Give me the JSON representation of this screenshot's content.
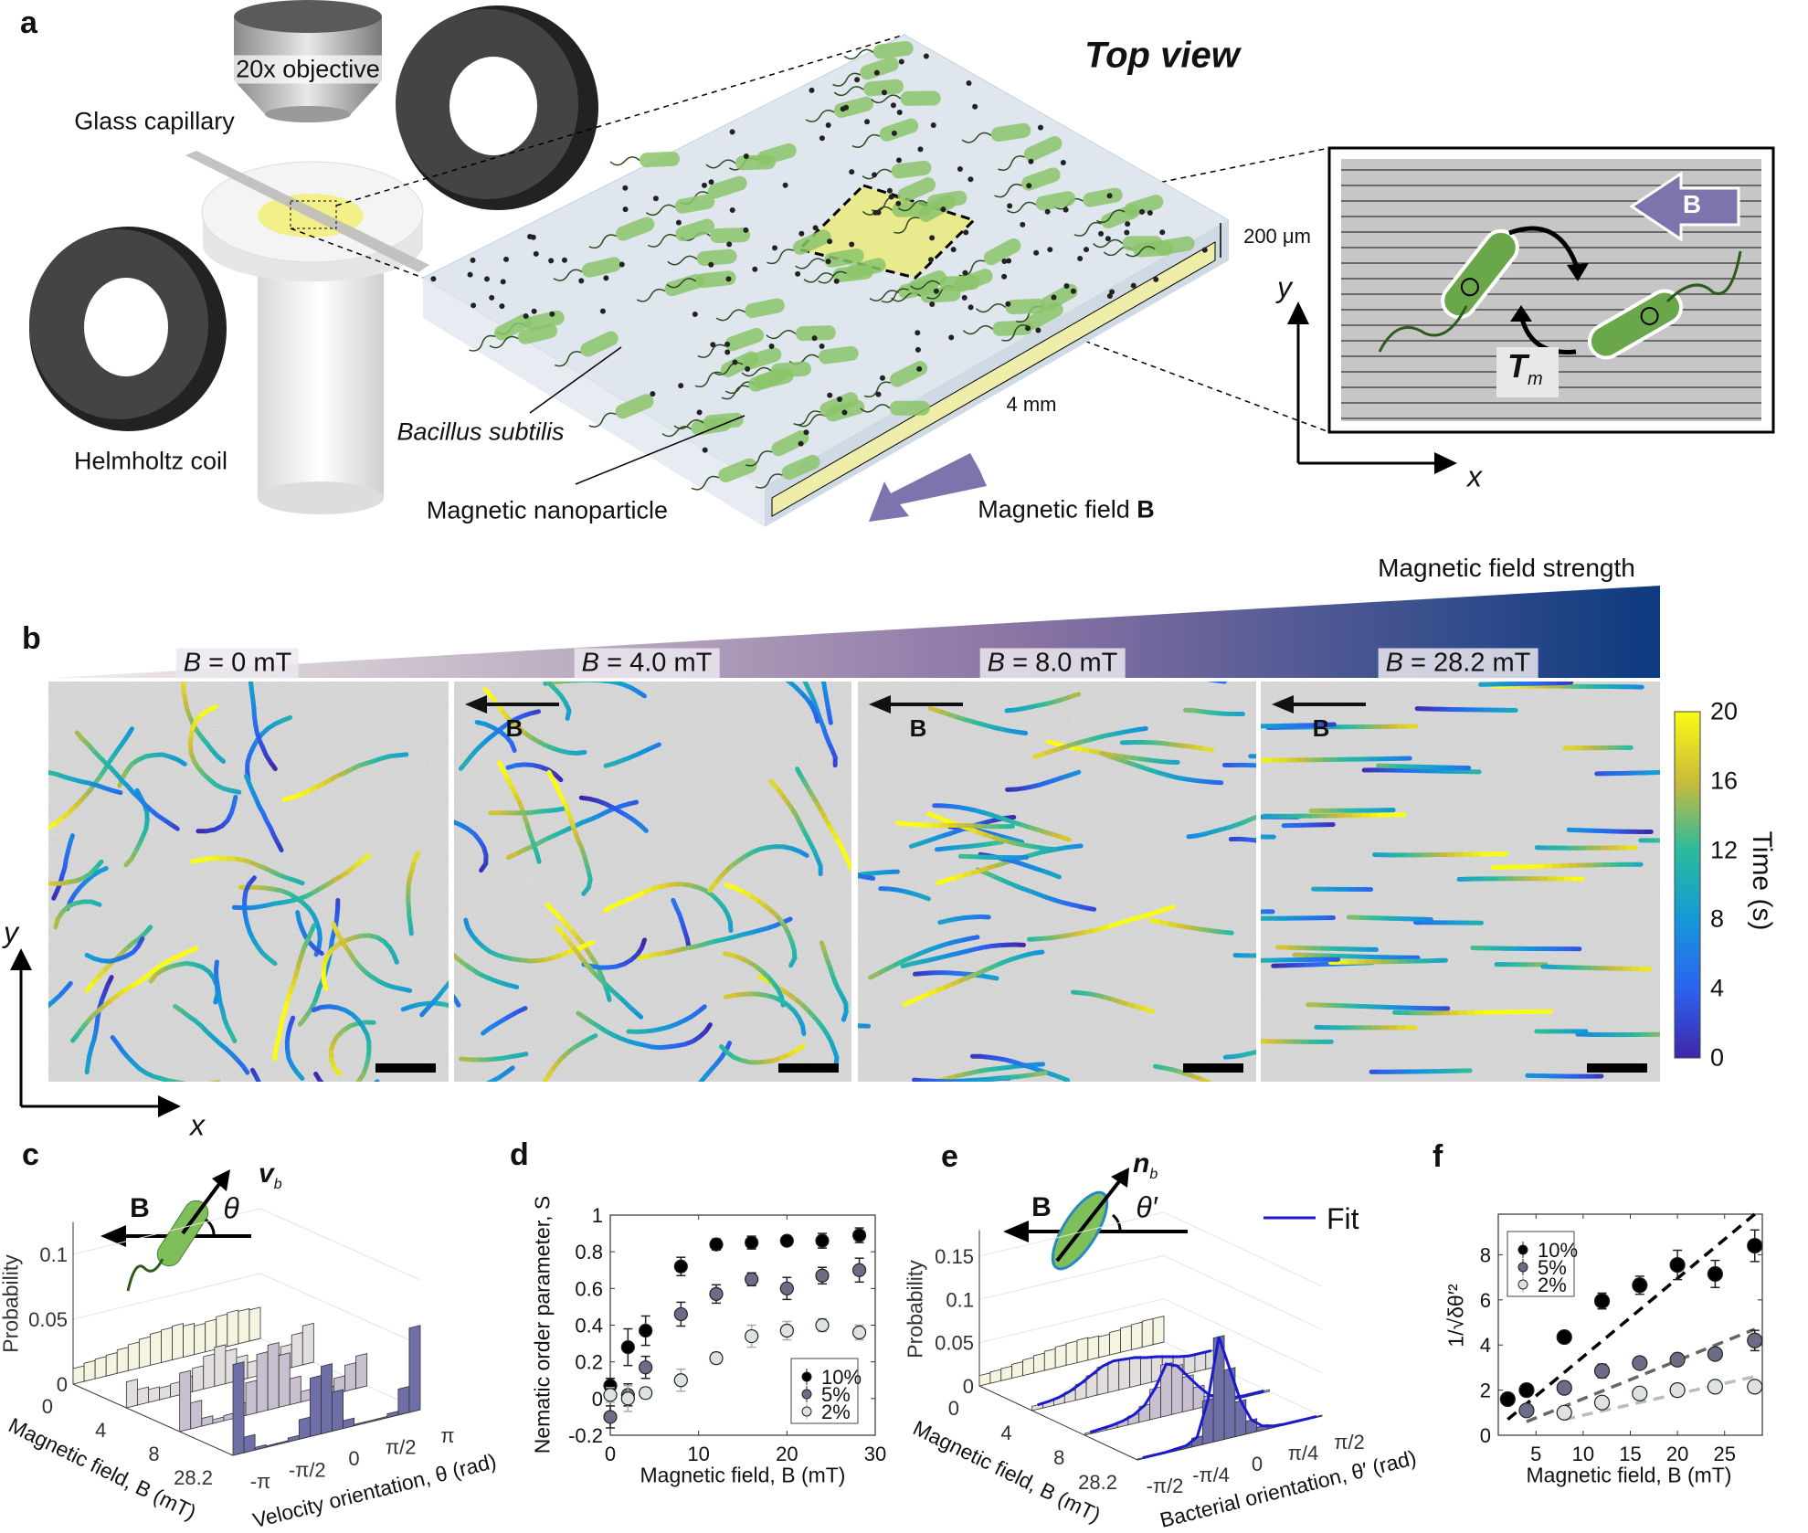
{
  "panel_a": {
    "label": "a",
    "objective_label": "20x objective",
    "capillary_label": "Glass capillary",
    "coil_label": "Helmholtz coil",
    "bacteria_label": "Bacillus subtilis",
    "nanoparticle_label": "Magnetic nanoparticle",
    "top_view_label": "Top view",
    "thickness_label": "200 μm",
    "length_label": "4 mm",
    "field_label": "Magnetic field ",
    "field_symbol": "B",
    "inset": {
      "field_symbol": "B",
      "torque_symbol": "T",
      "torque_subscript": "m",
      "x_axis": "x",
      "y_axis": "y"
    },
    "colors": {
      "bacteria": "#7fb55a",
      "sample": "#f3f0a0",
      "field_arrow": "#7d73ad",
      "coil": "#3a3a3a"
    }
  },
  "panel_b": {
    "label": "b",
    "gradient_label": "Magnetic field strength",
    "gradient_colors": [
      "#f2efe6",
      "#8c74a4",
      "#0c3a80"
    ],
    "panels": [
      {
        "prefix": "B",
        "value": " = 0 mT",
        "arrow": false,
        "alignment": 0.0
      },
      {
        "prefix": "B",
        "value": " = 4.0 mT",
        "arrow": true,
        "alignment": 0.35
      },
      {
        "prefix": "B",
        "value": " = 8.0 mT",
        "arrow": true,
        "alignment": 0.6
      },
      {
        "prefix": "B",
        "value": " = 28.2 mT",
        "arrow": true,
        "alignment": 0.95
      }
    ],
    "arrow_label": "B",
    "colorbar": {
      "label": "Time (s)",
      "ticks": [
        "20",
        "16",
        "12",
        "8",
        "4",
        "0"
      ],
      "range": [
        0,
        20
      ],
      "colormap": "parula"
    },
    "x_axis": "x",
    "y_axis": "y"
  },
  "panel_c": {
    "label": "c",
    "field_symbol": "B",
    "vector_symbol": "v",
    "vector_subscript": "b",
    "angle_symbol": "θ"
  },
  "panel_d": {
    "label": "d"
  },
  "panel_e": {
    "label": "e",
    "field_symbol": "B",
    "vector_symbol": "n",
    "vector_subscript": "b",
    "angle_symbol": "θ′",
    "fit_label": "Fit",
    "fit_color": "#1a1ad0"
  },
  "panel_f": {
    "label": "f"
  },
  "chart_data": [
    {
      "id": "c",
      "type": "bar",
      "subtype": "3d-histogram",
      "zlabel": "Probability",
      "xlabel": "Velocity orientation, θ (rad)",
      "ylabel": "Magnetic field, B (mT)",
      "xticks": [
        "-π",
        "-π/2",
        "0",
        "π/2",
        "π"
      ],
      "zticks": [
        "0",
        "0.05",
        "0.1"
      ],
      "zlim": [
        0,
        0.125
      ],
      "xlim": [
        -3.1416,
        3.1416
      ],
      "series": [
        {
          "name": "0",
          "color": "#f4f4e0",
          "values": [
            0.012,
            0.014,
            0.015,
            0.016,
            0.018,
            0.02,
            0.022,
            0.024,
            0.025,
            0.026,
            0.024,
            0.022,
            0.023,
            0.025,
            0.026,
            0.025,
            0.024
          ]
        },
        {
          "name": "4",
          "color": "#e2dede",
          "values": [
            0.02,
            0.012,
            0.01,
            0.009,
            0.01,
            0.012,
            0.018,
            0.025,
            0.03,
            0.025,
            0.018,
            0.012,
            0.01,
            0.012,
            0.018,
            0.025,
            0.03
          ]
        },
        {
          "name": "8",
          "color": "#c8c0d0",
          "values": [
            0.045,
            0.02,
            0.006,
            0.003,
            0.004,
            0.01,
            0.025,
            0.045,
            0.05,
            0.04,
            0.02,
            0.008,
            0.004,
            0.006,
            0.012,
            0.02,
            0.025
          ]
        },
        {
          "name": "28.2",
          "color": "#6f6fa8",
          "values": [
            0.07,
            0.012,
            0.002,
            0.001,
            0.001,
            0.003,
            0.015,
            0.045,
            0.052,
            0.03,
            0.006,
            0.001,
            0.001,
            0.001,
            0.003,
            0.02,
            0.065
          ]
        }
      ]
    },
    {
      "id": "d",
      "type": "scatter",
      "xlabel": "Magnetic field, B (mT)",
      "ylabel": "Nematic order parameter, S",
      "xlim": [
        0,
        30
      ],
      "ylim": [
        -0.2,
        1
      ],
      "xticks": [
        0,
        10,
        20,
        30
      ],
      "yticks": [
        -0.2,
        0,
        0.2,
        0.4,
        0.6,
        0.8,
        1
      ],
      "legend": "bottom-right",
      "x": [
        0,
        2,
        4,
        8,
        12,
        16,
        20,
        24,
        28.2
      ],
      "series": [
        {
          "name": "10%",
          "color": "#000000",
          "values": [
            0.07,
            0.28,
            0.37,
            0.72,
            0.84,
            0.85,
            0.86,
            0.86,
            0.89
          ],
          "errors": [
            0.04,
            0.1,
            0.08,
            0.05,
            0.03,
            0.035,
            0.02,
            0.04,
            0.04
          ]
        },
        {
          "name": "5%",
          "color": "#6c6c86",
          "values": [
            -0.1,
            0.02,
            0.17,
            0.46,
            0.57,
            0.65,
            0.6,
            0.67,
            0.7
          ],
          "errors": [
            0.06,
            0.06,
            0.06,
            0.065,
            0.05,
            0.035,
            0.06,
            0.045,
            0.065
          ]
        },
        {
          "name": "2%",
          "color": "#dde3e0",
          "values": [
            0.02,
            0.0,
            0.03,
            0.1,
            0.22,
            0.34,
            0.37,
            0.4,
            0.36
          ],
          "errors": [
            0.04,
            0.07,
            0.03,
            0.06,
            0.03,
            0.06,
            0.05,
            0.035,
            0.04
          ]
        }
      ]
    },
    {
      "id": "e",
      "type": "bar",
      "subtype": "3d-histogram",
      "zlabel": "Probability",
      "xlabel": "Bacterial orientation, θ′ (rad)",
      "ylabel": "Magnetic field, B (mT)",
      "xticks": [
        "-π/2",
        "-π/4",
        "0",
        "π/4",
        "π/2"
      ],
      "zticks": [
        "0",
        "0.05",
        "0.1",
        "0.15"
      ],
      "zlim": [
        0,
        0.18
      ],
      "xlim": [
        -1.5708,
        1.5708
      ],
      "series": [
        {
          "name": "0",
          "color": "#f4f4e0",
          "values": [
            0.012,
            0.013,
            0.014,
            0.016,
            0.018,
            0.02,
            0.022,
            0.024,
            0.025,
            0.026,
            0.025,
            0.024,
            0.026,
            0.028,
            0.029,
            0.03,
            0.03
          ]
        },
        {
          "name": "4",
          "color": "#e2dede",
          "values": [
            0.005,
            0.006,
            0.008,
            0.012,
            0.018,
            0.025,
            0.032,
            0.035,
            0.034,
            0.033,
            0.03,
            0.028,
            0.025,
            0.022,
            0.02,
            0.02,
            0.02
          ]
        },
        {
          "name": "8",
          "color": "#c8c0d0",
          "values": [
            0.002,
            0.003,
            0.004,
            0.006,
            0.01,
            0.018,
            0.035,
            0.06,
            0.055,
            0.04,
            0.025,
            0.012,
            0.006,
            0.003,
            0.002,
            0.002,
            0.002
          ]
        },
        {
          "name": "28.2",
          "color": "#6f6fa8",
          "values": [
            0.001,
            0.001,
            0.001,
            0.002,
            0.003,
            0.01,
            0.05,
            0.12,
            0.08,
            0.04,
            0.015,
            0.005,
            0.002,
            0.001,
            0.001,
            0.001,
            0.001
          ]
        }
      ]
    },
    {
      "id": "f",
      "type": "scatter",
      "xlabel": "Magnetic field, B (mT)",
      "ylabel": "1/√δθ′²",
      "xlim": [
        1,
        29
      ],
      "ylim": [
        0,
        9.8
      ],
      "xticks": [
        5,
        10,
        15,
        20,
        25
      ],
      "yticks": [
        0,
        2,
        4,
        6,
        8
      ],
      "legend": "top-left",
      "series": [
        {
          "name": "10%",
          "color": "#000000",
          "x": [
            2,
            4,
            8,
            12,
            16,
            20,
            24,
            28.2
          ],
          "values": [
            1.6,
            2.0,
            4.35,
            5.95,
            6.65,
            7.55,
            7.15,
            8.4
          ],
          "errors": [
            0.25,
            0.1,
            0.1,
            0.35,
            0.4,
            0.65,
            0.6,
            0.7
          ],
          "fit": [
            [
              2,
              0.7
            ],
            [
              28.2,
              9.8
            ]
          ]
        },
        {
          "name": "5%",
          "color": "#6c6c86",
          "x": [
            4,
            8,
            12,
            16,
            20,
            24,
            28.2
          ],
          "values": [
            1.1,
            2.1,
            2.85,
            3.2,
            3.35,
            3.6,
            4.2
          ],
          "errors": [
            0.15,
            0.1,
            0.3,
            0.2,
            0.15,
            0.25,
            0.45
          ],
          "fit": [
            [
              4,
              0.6
            ],
            [
              28.2,
              4.7
            ]
          ]
        },
        {
          "name": "2%",
          "color": "#dde3e0",
          "x": [
            8,
            12,
            16,
            20,
            24,
            28.2
          ],
          "values": [
            1.0,
            1.45,
            1.85,
            2.0,
            2.15,
            2.15
          ],
          "errors": [
            0.1,
            0.15,
            0.15,
            0.1,
            0.1,
            0.1
          ],
          "fit": [
            [
              8,
              0.7
            ],
            [
              28.2,
              2.6
            ]
          ]
        }
      ]
    }
  ]
}
